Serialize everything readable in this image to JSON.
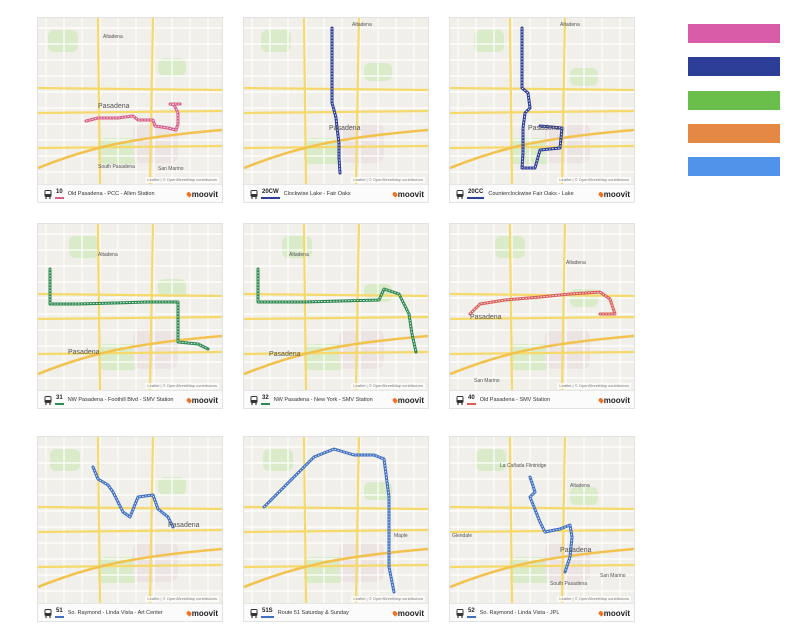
{
  "brand": "moovit",
  "attribution": "Leaflet | © OpenStreetMap contributors",
  "legend_colors": [
    "#d85ca8",
    "#2d3e98",
    "#6abf4b",
    "#e58844",
    "#4f93ea"
  ],
  "cards": [
    {
      "id": "10",
      "name": "Old Pasadena - PCC - Allen Station",
      "color": "#d85f8a",
      "labels": [
        "Altadena",
        "Pasadena",
        "San Marino",
        "South Pasadena"
      ]
    },
    {
      "id": "20CW",
      "name": "Clockwise Lake - Fair Oaks",
      "color": "#2d3e98",
      "labels": [
        "Altadena",
        "Pasadena"
      ]
    },
    {
      "id": "20CC",
      "name": "Counterclockwise Fair Oaks - Lake",
      "color": "#2d3e98",
      "labels": [
        "Altadena",
        "Pasadena"
      ]
    },
    {
      "id": "31",
      "name": "NW Pasadena - Foothill Blvd - SMV Station",
      "color": "#2f8a52",
      "labels": [
        "Altadena",
        "Pasadena"
      ]
    },
    {
      "id": "32",
      "name": "NW Pasadena - New York - SMV Station",
      "color": "#2f8a52",
      "labels": [
        "Altadena",
        "Pasadena"
      ]
    },
    {
      "id": "40",
      "name": "Old Pasadena - SMV Station",
      "color": "#d85f5a",
      "labels": [
        "Altadena",
        "Pasadena",
        "San Marino"
      ]
    },
    {
      "id": "51",
      "name": "So. Raymond - Linda Vista - Art Center",
      "color": "#3f6fc2",
      "labels": [
        "Pasadena"
      ]
    },
    {
      "id": "51S",
      "name": "Route 51 Saturday & Sunday",
      "color": "#3f6fc2",
      "labels": [
        "Maple"
      ]
    },
    {
      "id": "52",
      "name": "So. Raymond - Linda Vista - JPL",
      "color": "#3f6fc2",
      "labels": [
        "La Cañada Flintridge",
        "Altadena",
        "Pasadena",
        "Glendale",
        "South Pasadena",
        "San Marino"
      ]
    }
  ]
}
